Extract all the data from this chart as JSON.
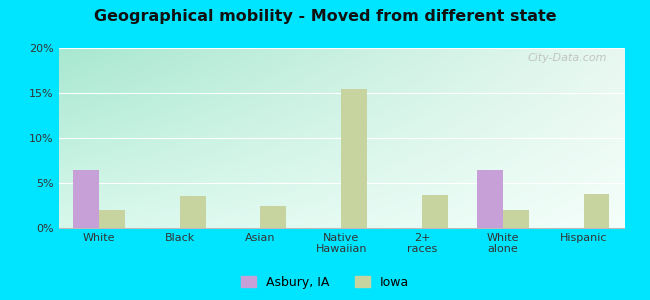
{
  "title": "Geographical mobility - Moved from different state",
  "categories": [
    "White",
    "Black",
    "Asian",
    "Native\nHawaiian",
    "2+\nraces",
    "White\nalone",
    "Hispanic"
  ],
  "asbury_values": [
    6.4,
    0,
    0,
    0,
    0,
    6.4,
    0
  ],
  "iowa_values": [
    2.0,
    3.6,
    2.5,
    15.5,
    3.7,
    2.0,
    3.8
  ],
  "asbury_color": "#c8a0d8",
  "iowa_color": "#c8d4a0",
  "ylim": [
    0,
    20
  ],
  "yticks": [
    0,
    5,
    10,
    15,
    20
  ],
  "yticklabels": [
    "0%",
    "5%",
    "10%",
    "15%",
    "20%"
  ],
  "bg_top_left": "#a8e8d0",
  "bg_top_right": "#e8f8f0",
  "bg_bottom": "#f0fdf8",
  "outer_bg": "#00e5ff",
  "legend_labels": [
    "Asbury, IA",
    "Iowa"
  ],
  "watermark": "City-Data.com",
  "bar_width": 0.32
}
